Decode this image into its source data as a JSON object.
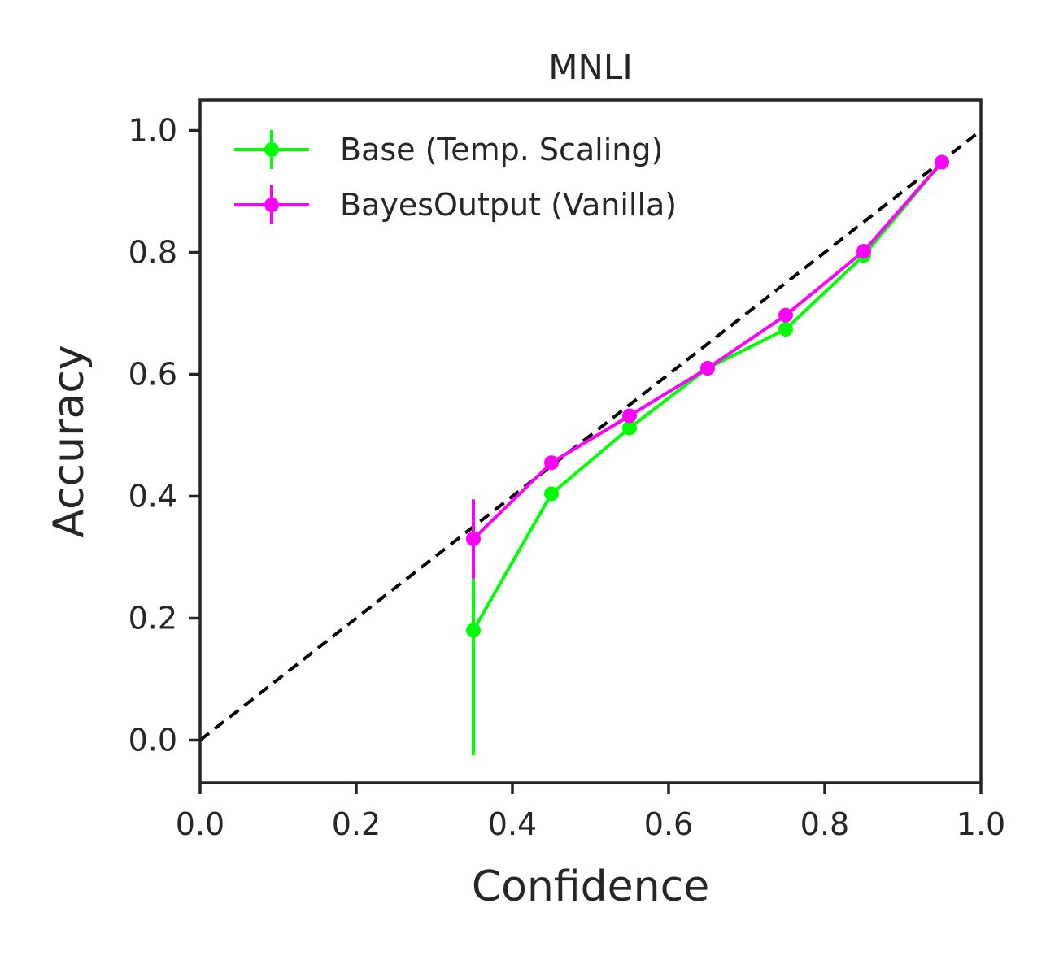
{
  "chart_data": {
    "type": "line",
    "title": "MNLI",
    "xlabel": "Confidence",
    "ylabel": "Accuracy",
    "xlim": [
      0.0,
      1.0
    ],
    "ylim": [
      -0.07,
      1.05
    ],
    "xticks": [
      "0.0",
      "0.2",
      "0.4",
      "0.6",
      "0.8",
      "1.0"
    ],
    "yticks": [
      "0.0",
      "0.2",
      "0.4",
      "0.6",
      "0.8",
      "1.0"
    ],
    "grid": false,
    "legend_position": "top-left",
    "reference_line": {
      "style": "dashed",
      "color": "#000000",
      "from": [
        0,
        0
      ],
      "to": [
        1,
        1
      ]
    },
    "x": [
      0.35,
      0.45,
      0.55,
      0.65,
      0.75,
      0.85,
      0.95
    ],
    "series": [
      {
        "name": "Base (Temp. Scaling)",
        "color": "#00ff00",
        "values": [
          0.18,
          0.404,
          0.512,
          0.61,
          0.674,
          0.795,
          0.948
        ],
        "error": [
          0.205,
          0.01,
          0.008,
          0.006,
          0.006,
          0.006,
          0.004
        ]
      },
      {
        "name": "BayesOutput (Vanilla)",
        "color": "#ff00ff",
        "values": [
          0.33,
          0.455,
          0.532,
          0.61,
          0.697,
          0.802,
          0.948
        ],
        "error": [
          0.065,
          0.01,
          0.008,
          0.006,
          0.006,
          0.006,
          0.004
        ]
      }
    ]
  }
}
